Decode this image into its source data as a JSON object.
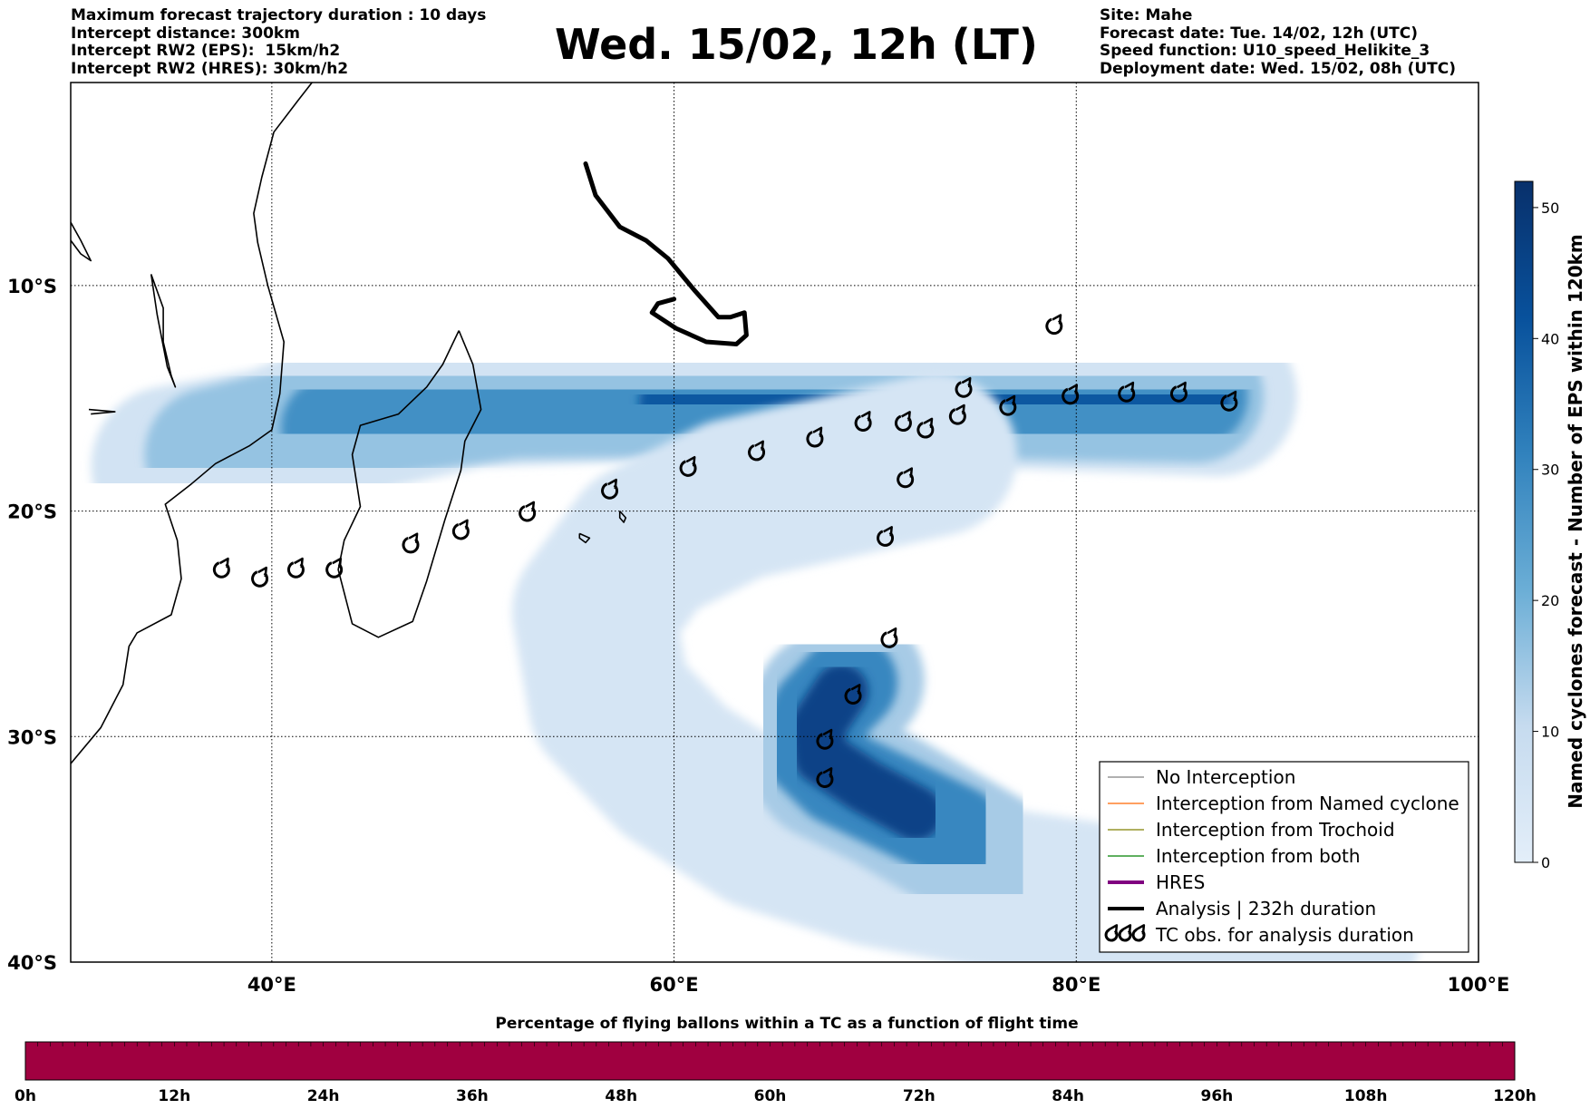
{
  "header_left": {
    "line1": "Maximum forecast trajectory duration : 10 days",
    "line2": "Intercept distance: 300km",
    "line3": "Intercept RW2 (EPS):  15km/h2",
    "line4": "Intercept RW2 (HRES): 30km/h2"
  },
  "title": "Wed. 15/02, 12h (LT)",
  "header_right": {
    "site": "Site: Mahe",
    "forecast_date": "Forecast date: Tue. 14/02, 12h (UTC)",
    "speed_function": "Speed function: U10_speed_Helikite_3",
    "deployment_date": "Deployment date: Wed. 15/02, 08h (UTC)"
  },
  "map": {
    "lon_range": [
      30,
      100
    ],
    "lat_range": [
      -40,
      -1
    ],
    "lon_ticks": [
      "40°E",
      "60°E",
      "80°E",
      "100°E"
    ],
    "lat_ticks": [
      "10°S",
      "20°S",
      "30°S",
      "40°S"
    ],
    "site": "Mahe"
  },
  "colorbar": {
    "label": "Named cyclones forecast - Number of EPS within 120km",
    "ticks": [
      "0",
      "10",
      "20",
      "30",
      "40",
      "50"
    ],
    "min": 0,
    "max": 52,
    "low_color": "#e3eef9",
    "high_color": "#08306b"
  },
  "legend": {
    "items": [
      {
        "label": "No Interception",
        "color": "#808080"
      },
      {
        "label": "Interception from Named cyclone",
        "color": "#ff6600"
      },
      {
        "label": "Interception from Trochoid",
        "color": "#808000"
      },
      {
        "label": "Interception from both",
        "color": "#008000"
      },
      {
        "label": "HRES",
        "color": "#800080"
      },
      {
        "label": "Analysis | 232h duration",
        "color": "#000000"
      },
      {
        "label": "TC obs. for analysis duration",
        "color": "#000000"
      }
    ]
  },
  "timebar": {
    "title": "Percentage of flying ballons within a TC as a function of flight time",
    "ticks": [
      "0h",
      "12h",
      "24h",
      "36h",
      "48h",
      "60h",
      "72h",
      "84h",
      "96h",
      "108h",
      "120h"
    ],
    "color": "#a00040"
  },
  "analysis_track": [
    {
      "lon": 55.6,
      "lat": -4.6
    },
    {
      "lon": 56.1,
      "lat": -6.0
    },
    {
      "lon": 57.3,
      "lat": -7.4
    },
    {
      "lon": 58.6,
      "lat": -8.0
    },
    {
      "lon": 59.7,
      "lat": -8.8
    },
    {
      "lon": 61.0,
      "lat": -10.2
    },
    {
      "lon": 62.2,
      "lat": -11.4
    },
    {
      "lon": 62.8,
      "lat": -11.4
    },
    {
      "lon": 63.5,
      "lat": -11.2
    },
    {
      "lon": 63.6,
      "lat": -12.2
    },
    {
      "lon": 63.1,
      "lat": -12.6
    },
    {
      "lon": 61.6,
      "lat": -12.5
    },
    {
      "lon": 60.1,
      "lat": -11.9
    },
    {
      "lon": 58.9,
      "lat": -11.2
    },
    {
      "lon": 59.2,
      "lat": -10.8
    },
    {
      "lon": 60.0,
      "lat": -10.6
    }
  ],
  "tc_obs": [
    {
      "lon": 78.9,
      "lat": -11.8
    },
    {
      "lon": 85.1,
      "lat": -14.8
    },
    {
      "lon": 87.6,
      "lat": -15.2
    },
    {
      "lon": 82.5,
      "lat": -14.8
    },
    {
      "lon": 79.7,
      "lat": -14.9
    },
    {
      "lon": 76.6,
      "lat": -15.4
    },
    {
      "lon": 74.4,
      "lat": -14.6
    },
    {
      "lon": 74.1,
      "lat": -15.8
    },
    {
      "lon": 72.5,
      "lat": -16.4
    },
    {
      "lon": 71.4,
      "lat": -16.1
    },
    {
      "lon": 69.4,
      "lat": -16.1
    },
    {
      "lon": 67.0,
      "lat": -16.8
    },
    {
      "lon": 64.1,
      "lat": -17.4
    },
    {
      "lon": 60.7,
      "lat": -18.1
    },
    {
      "lon": 56.8,
      "lat": -19.1
    },
    {
      "lon": 52.7,
      "lat": -20.1
    },
    {
      "lon": 49.4,
      "lat": -20.9
    },
    {
      "lon": 46.9,
      "lat": -21.5
    },
    {
      "lon": 43.1,
      "lat": -22.6
    },
    {
      "lon": 41.2,
      "lat": -22.6
    },
    {
      "lon": 39.4,
      "lat": -23.0
    },
    {
      "lon": 37.5,
      "lat": -22.6
    },
    {
      "lon": 71.5,
      "lat": -18.6
    },
    {
      "lon": 70.5,
      "lat": -21.2
    },
    {
      "lon": 70.7,
      "lat": -25.7
    },
    {
      "lon": 68.9,
      "lat": -28.2
    },
    {
      "lon": 67.5,
      "lat": -30.2
    },
    {
      "lon": 67.5,
      "lat": -31.9
    }
  ],
  "eps_density": [
    {
      "track": [
        [
          35,
          -18
        ],
        [
          40,
          -17.2
        ],
        [
          45,
          -15.5
        ],
        [
          50,
          -14.5
        ],
        [
          60,
          -14.2
        ],
        [
          70,
          -14.4
        ],
        [
          78,
          -14.6
        ],
        [
          84,
          -14.8
        ],
        [
          87,
          -14.9
        ]
      ],
      "value": 6
    },
    {
      "track": [
        [
          37,
          -17.5
        ],
        [
          42,
          -16.4
        ],
        [
          46,
          -15.4
        ],
        [
          52,
          -14.7
        ],
        [
          62,
          -14.6
        ],
        [
          72,
          -14.6
        ],
        [
          80,
          -14.8
        ],
        [
          86,
          -14.9
        ]
      ],
      "value": 16
    },
    {
      "track": [
        [
          43,
          -16.3
        ],
        [
          48,
          -15.3
        ],
        [
          56,
          -14.9
        ],
        [
          66,
          -14.9
        ],
        [
          76,
          -14.9
        ],
        [
          86,
          -14.9
        ]
      ],
      "value": 28
    },
    {
      "track": [
        [
          60,
          -15.2
        ],
        [
          70,
          -15.1
        ],
        [
          78,
          -14.9
        ],
        [
          86,
          -14.9
        ]
      ],
      "value": 40
    },
    {
      "track": [
        [
          76,
          -14.9
        ],
        [
          86,
          -14.9
        ]
      ],
      "value": 50
    },
    {
      "track": [
        [
          73,
          -17.5
        ],
        [
          68,
          -18.5
        ],
        [
          63,
          -19.5
        ],
        [
          58.5,
          -21.5
        ],
        [
          56,
          -24.5
        ],
        [
          56.8,
          -28.5
        ],
        [
          60,
          -31.5
        ],
        [
          64.5,
          -34.1
        ],
        [
          70,
          -35.7
        ],
        [
          77,
          -36.9
        ],
        [
          86,
          -38.1
        ],
        [
          93,
          -39.0
        ]
      ],
      "value": 5
    },
    {
      "track": [
        [
          69,
          -27.5
        ],
        [
          67.5,
          -28.5
        ],
        [
          66.3,
          -30.2
        ],
        [
          67.5,
          -31.5
        ],
        [
          70.5,
          -32.8
        ],
        [
          73,
          -34.1
        ],
        [
          75.5,
          -35.4
        ]
      ],
      "value": 14
    },
    {
      "track": [
        [
          68.7,
          -27.6
        ],
        [
          67.2,
          -29.0
        ],
        [
          66.6,
          -30.4
        ],
        [
          68.2,
          -31.8
        ],
        [
          71,
          -33.0
        ],
        [
          74,
          -34.3
        ]
      ],
      "value": 30
    },
    {
      "track": [
        [
          68.3,
          -28.0
        ],
        [
          67.1,
          -29.6
        ],
        [
          67.3,
          -30.9
        ],
        [
          69.5,
          -32.2
        ],
        [
          72,
          -33.4
        ]
      ],
      "value": 46
    }
  ],
  "coastlines": [
    [
      [
        30,
        -31.2
      ],
      [
        31.5,
        -29.6
      ],
      [
        32.6,
        -27.7
      ],
      [
        32.9,
        -26.0
      ],
      [
        33.3,
        -25.4
      ],
      [
        35.0,
        -24.6
      ],
      [
        35.5,
        -23.0
      ],
      [
        35.3,
        -21.3
      ],
      [
        34.7,
        -19.7
      ],
      [
        36.0,
        -18.8
      ],
      [
        37.2,
        -17.9
      ],
      [
        38.9,
        -17.1
      ],
      [
        40.0,
        -16.4
      ],
      [
        40.4,
        -14.8
      ],
      [
        40.6,
        -12.5
      ],
      [
        39.8,
        -10.0
      ],
      [
        39.3,
        -8.1
      ],
      [
        39.1,
        -6.8
      ],
      [
        39.5,
        -5.2
      ],
      [
        40.1,
        -3.2
      ],
      [
        41.3,
        -1.8
      ],
      [
        42.0,
        -1.0
      ]
    ],
    [
      [
        49.3,
        -12.0
      ],
      [
        50.0,
        -13.5
      ],
      [
        50.4,
        -15.5
      ],
      [
        49.6,
        -16.9
      ],
      [
        49.4,
        -18.2
      ],
      [
        48.6,
        -20.4
      ],
      [
        47.7,
        -23.1
      ],
      [
        47.0,
        -24.9
      ],
      [
        45.3,
        -25.6
      ],
      [
        44.0,
        -25.0
      ],
      [
        43.3,
        -22.6
      ],
      [
        43.6,
        -21.3
      ],
      [
        44.4,
        -19.8
      ],
      [
        44.0,
        -17.5
      ],
      [
        44.4,
        -16.2
      ],
      [
        46.3,
        -15.7
      ],
      [
        47.7,
        -14.5
      ],
      [
        48.5,
        -13.5
      ],
      [
        49.3,
        -12.0
      ]
    ],
    [
      [
        34.0,
        -9.5
      ],
      [
        34.6,
        -11.0
      ],
      [
        34.6,
        -12.5
      ],
      [
        35.0,
        -14.0
      ],
      [
        35.2,
        -14.5
      ],
      [
        34.8,
        -13.6
      ],
      [
        34.3,
        -11.3
      ],
      [
        34.0,
        -9.5
      ]
    ],
    [
      [
        30.0,
        -7.2
      ],
      [
        30.5,
        -8.0
      ],
      [
        31.0,
        -8.9
      ],
      [
        30.5,
        -8.6
      ],
      [
        30.0,
        -8.0
      ]
    ],
    [
      [
        57.3,
        -20.0
      ],
      [
        57.6,
        -20.3
      ],
      [
        57.5,
        -20.5
      ],
      [
        57.3,
        -20.3
      ],
      [
        57.3,
        -20.0
      ]
    ],
    [
      [
        55.3,
        -21.0
      ],
      [
        55.8,
        -21.2
      ],
      [
        55.6,
        -21.4
      ],
      [
        55.3,
        -21.2
      ],
      [
        55.3,
        -21.0
      ]
    ],
    [
      [
        30.9,
        -15.5
      ],
      [
        32.2,
        -15.6
      ],
      [
        31.0,
        -15.7
      ]
    ]
  ]
}
